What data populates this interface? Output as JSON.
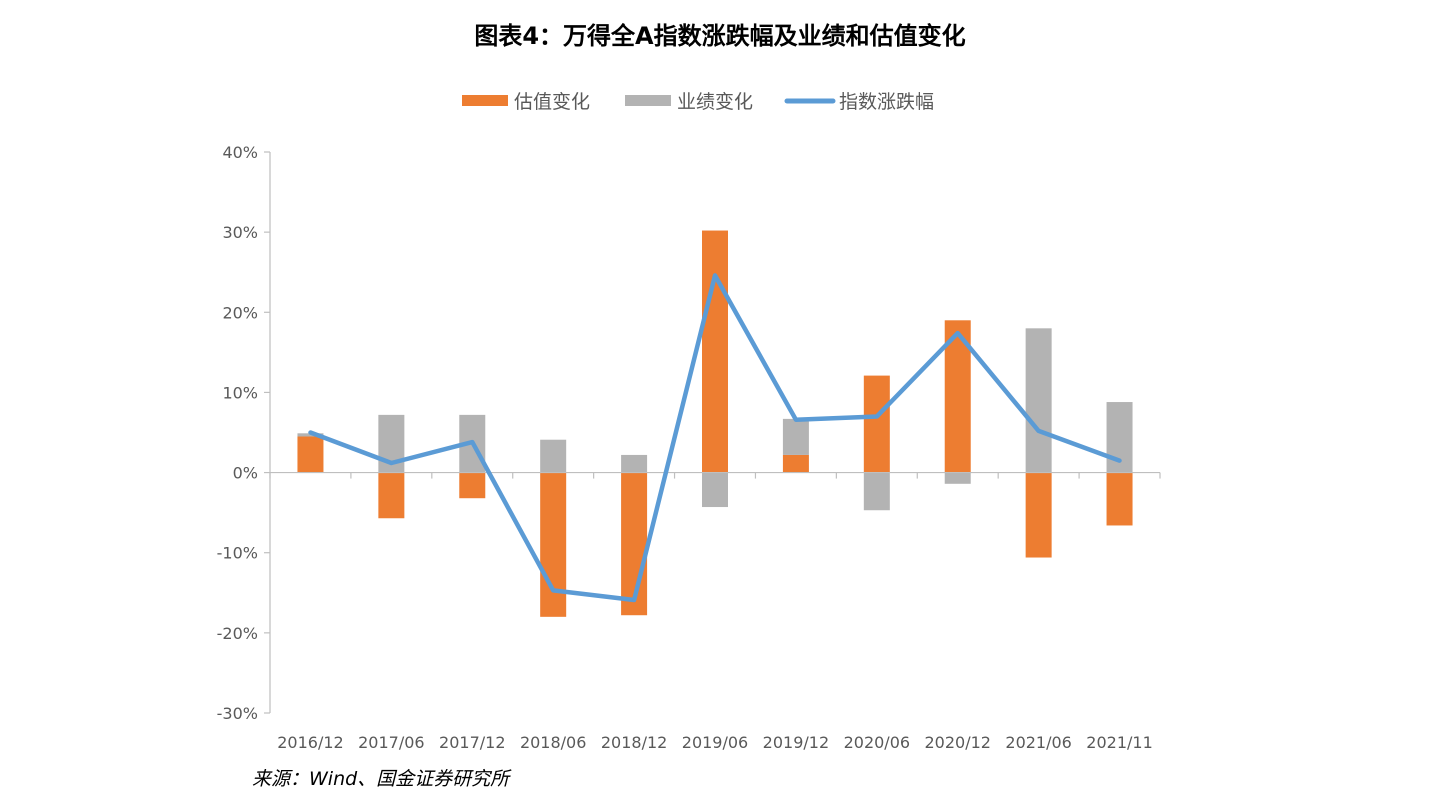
{
  "title": "图表4：万得全A指数涨跌幅及业绩和估值变化",
  "source": "来源：Wind、国金证券研究所",
  "colors": {
    "valuation": "#ED7D31",
    "earnings": "#B3B3B3",
    "index": "#5B9BD5",
    "axis": "#BFBFBF",
    "text": "#595959"
  },
  "chart_data": {
    "type": "bar",
    "title": "图表4：万得全A指数涨跌幅及业绩和估值变化",
    "xlabel": "",
    "ylabel": "",
    "ylim": [
      -30,
      40
    ],
    "y_ticks": [
      "40%",
      "30%",
      "20%",
      "10%",
      "0%",
      "-10%",
      "-20%",
      "-30%"
    ],
    "y_tick_values": [
      40,
      30,
      20,
      10,
      0,
      -10,
      -20,
      -30
    ],
    "categories": [
      "2016/12",
      "2017/06",
      "2017/12",
      "2018/06",
      "2018/12",
      "2019/06",
      "2019/12",
      "2020/06",
      "2020/12",
      "2021/06",
      "2021/11"
    ],
    "legend_position": "top-center",
    "grid": false,
    "series": [
      {
        "name": "估值变化",
        "type": "bar",
        "stacked": true,
        "values": [
          4.5,
          -5.7,
          -3.2,
          -18.0,
          -17.8,
          30.2,
          2.2,
          12.1,
          19.0,
          -10.6,
          -6.6
        ]
      },
      {
        "name": "业绩变化",
        "type": "bar",
        "stacked": true,
        "values": [
          0.4,
          7.2,
          7.2,
          4.1,
          2.2,
          -4.3,
          4.5,
          -4.7,
          -1.4,
          18.0,
          8.8
        ]
      },
      {
        "name": "指数涨跌幅",
        "type": "line",
        "values": [
          5.0,
          1.2,
          3.8,
          -14.7,
          -15.9,
          24.6,
          6.6,
          7.0,
          17.4,
          5.2,
          1.5
        ]
      }
    ]
  }
}
